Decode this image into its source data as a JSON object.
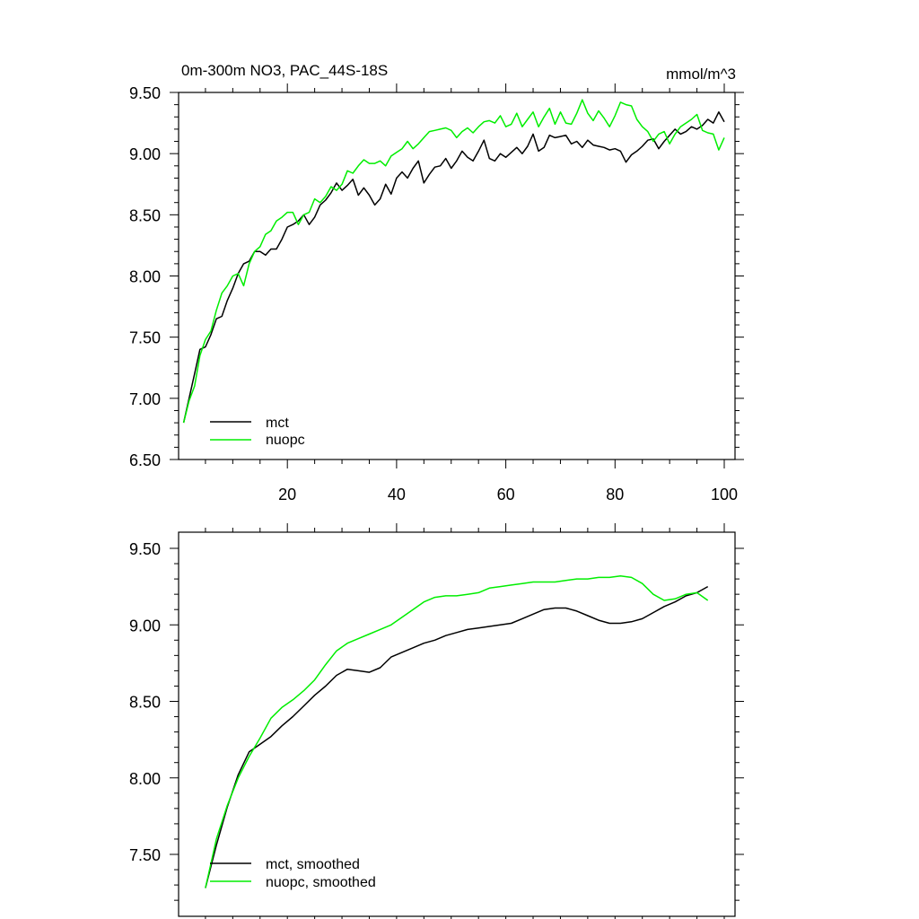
{
  "chart_data": [
    {
      "type": "line",
      "title_left": "0m-300m NO3, PAC_44S-18S",
      "title_right": "mmol/m^3",
      "xlabel": "",
      "ylabel": "",
      "xlim": [
        0,
        101
      ],
      "ylim": [
        6.5,
        9.5
      ],
      "x_ticks": [
        "20",
        "40",
        "60",
        "80",
        "100"
      ],
      "y_ticks": [
        "6.50",
        "7.00",
        "7.50",
        "8.00",
        "8.50",
        "9.00",
        "9.50"
      ],
      "legend_position": "bottom-left",
      "series": [
        {
          "name": "mct",
          "color": "#000000",
          "x": [
            1,
            2,
            3,
            4,
            5,
            6,
            7,
            8,
            9,
            10,
            11,
            12,
            13,
            14,
            15,
            16,
            17,
            18,
            19,
            20,
            21,
            22,
            23,
            24,
            25,
            26,
            27,
            28,
            29,
            30,
            31,
            32,
            33,
            34,
            35,
            36,
            37,
            38,
            39,
            40,
            41,
            42,
            43,
            44,
            45,
            46,
            47,
            48,
            49,
            50,
            51,
            52,
            53,
            54,
            55,
            56,
            57,
            58,
            59,
            60,
            61,
            62,
            63,
            64,
            65,
            66,
            67,
            68,
            69,
            70,
            71,
            72,
            73,
            74,
            75,
            76,
            77,
            78,
            79,
            80,
            81,
            82,
            83,
            84,
            85,
            86,
            87,
            88,
            89,
            90,
            91,
            92,
            93,
            94,
            95,
            96,
            97,
            98,
            99,
            100
          ],
          "y": [
            6.8,
            7.0,
            7.2,
            7.4,
            7.42,
            7.52,
            7.65,
            7.67,
            7.8,
            7.9,
            8.02,
            8.1,
            8.12,
            8.2,
            8.2,
            8.17,
            8.22,
            8.22,
            8.3,
            8.4,
            8.42,
            8.45,
            8.5,
            8.42,
            8.48,
            8.58,
            8.62,
            8.68,
            8.76,
            8.7,
            8.74,
            8.79,
            8.66,
            8.72,
            8.66,
            8.58,
            8.63,
            8.75,
            8.67,
            8.8,
            8.85,
            8.8,
            8.88,
            8.94,
            8.76,
            8.83,
            8.89,
            8.9,
            8.96,
            8.88,
            8.94,
            9.02,
            8.97,
            8.94,
            9.02,
            9.11,
            8.96,
            8.94,
            9.0,
            8.97,
            9.01,
            9.05,
            9.0,
            9.06,
            9.16,
            9.02,
            9.05,
            9.15,
            9.13,
            9.14,
            9.15,
            9.08,
            9.1,
            9.05,
            9.11,
            9.07,
            9.06,
            9.05,
            9.03,
            9.04,
            9.02,
            8.93,
            8.99,
            9.02,
            9.06,
            9.11,
            9.12,
            9.04,
            9.1,
            9.15,
            9.2,
            9.16,
            9.18,
            9.22,
            9.2,
            9.23,
            9.28,
            9.25,
            9.34,
            9.26
          ]
        },
        {
          "name": "nuopc",
          "color": "#00ee00",
          "x": [
            1,
            2,
            3,
            4,
            5,
            6,
            7,
            8,
            9,
            10,
            11,
            12,
            13,
            14,
            15,
            16,
            17,
            18,
            19,
            20,
            21,
            22,
            23,
            24,
            25,
            26,
            27,
            28,
            29,
            30,
            31,
            32,
            33,
            34,
            35,
            36,
            37,
            38,
            39,
            40,
            41,
            42,
            43,
            44,
            45,
            46,
            47,
            48,
            49,
            50,
            51,
            52,
            53,
            54,
            55,
            56,
            57,
            58,
            59,
            60,
            61,
            62,
            63,
            64,
            65,
            66,
            67,
            68,
            69,
            70,
            71,
            72,
            73,
            74,
            75,
            76,
            77,
            78,
            79,
            80,
            81,
            82,
            83,
            84,
            85,
            86,
            87,
            88,
            89,
            90,
            91,
            92,
            93,
            94,
            95,
            96,
            97,
            98,
            99,
            100
          ],
          "y": [
            6.8,
            6.98,
            7.1,
            7.35,
            7.48,
            7.55,
            7.72,
            7.86,
            7.92,
            8.0,
            8.02,
            7.92,
            8.1,
            8.2,
            8.24,
            8.34,
            8.37,
            8.45,
            8.48,
            8.52,
            8.52,
            8.42,
            8.5,
            8.52,
            8.63,
            8.6,
            8.65,
            8.73,
            8.7,
            8.75,
            8.86,
            8.84,
            8.9,
            8.95,
            8.92,
            8.92,
            8.94,
            8.9,
            8.98,
            9.01,
            9.04,
            9.1,
            9.04,
            9.08,
            9.13,
            9.18,
            9.19,
            9.2,
            9.21,
            9.19,
            9.13,
            9.18,
            9.21,
            9.17,
            9.22,
            9.26,
            9.27,
            9.25,
            9.31,
            9.22,
            9.24,
            9.33,
            9.22,
            9.28,
            9.34,
            9.22,
            9.3,
            9.37,
            9.24,
            9.34,
            9.25,
            9.24,
            9.33,
            9.44,
            9.33,
            9.27,
            9.35,
            9.29,
            9.22,
            9.31,
            9.42,
            9.4,
            9.39,
            9.28,
            9.22,
            9.18,
            9.1,
            9.16,
            9.18,
            9.08,
            9.16,
            9.22,
            9.25,
            9.28,
            9.32,
            9.19,
            9.17,
            9.16,
            9.03,
            9.13
          ]
        }
      ]
    },
    {
      "type": "line",
      "title_left": "",
      "title_right": "",
      "xlabel": "",
      "ylabel": "",
      "xlim": [
        0,
        101
      ],
      "ylim": [
        7.2,
        9.55
      ],
      "x_ticks": [],
      "y_ticks": [
        "7.50",
        "8.00",
        "8.50",
        "9.00",
        "9.50"
      ],
      "legend_position": "bottom-left",
      "series": [
        {
          "name": "mct, smoothed",
          "color": "#000000",
          "x": [
            5,
            7,
            9,
            11,
            13,
            15,
            17,
            19,
            21,
            23,
            25,
            27,
            29,
            31,
            33,
            35,
            37,
            39,
            41,
            43,
            45,
            47,
            49,
            51,
            53,
            55,
            57,
            59,
            61,
            63,
            65,
            67,
            69,
            71,
            73,
            75,
            77,
            79,
            81,
            83,
            85,
            87,
            89,
            91,
            93,
            95,
            97
          ],
          "y": [
            7.28,
            7.56,
            7.81,
            8.02,
            8.17,
            8.22,
            8.27,
            8.34,
            8.4,
            8.47,
            8.54,
            8.6,
            8.67,
            8.71,
            8.7,
            8.69,
            8.72,
            8.79,
            8.82,
            8.85,
            8.88,
            8.9,
            8.93,
            8.95,
            8.97,
            8.98,
            8.99,
            9.0,
            9.01,
            9.04,
            9.07,
            9.1,
            9.11,
            9.11,
            9.09,
            9.06,
            9.03,
            9.01,
            9.01,
            9.02,
            9.04,
            9.08,
            9.12,
            9.15,
            9.19,
            9.21,
            9.25
          ]
        },
        {
          "name": "nuopc, smoothed",
          "color": "#00ee00",
          "x": [
            5,
            7,
            9,
            11,
            13,
            15,
            17,
            19,
            21,
            23,
            25,
            27,
            29,
            31,
            33,
            35,
            37,
            39,
            41,
            43,
            45,
            47,
            49,
            51,
            53,
            55,
            57,
            59,
            61,
            63,
            65,
            67,
            69,
            71,
            73,
            75,
            77,
            79,
            81,
            83,
            85,
            87,
            89,
            91,
            93,
            95,
            97
          ],
          "y": [
            7.28,
            7.6,
            7.82,
            8.0,
            8.14,
            8.26,
            8.39,
            8.46,
            8.51,
            8.57,
            8.64,
            8.74,
            8.83,
            8.88,
            8.91,
            8.94,
            8.97,
            9.0,
            9.05,
            9.1,
            9.15,
            9.18,
            9.19,
            9.19,
            9.2,
            9.21,
            9.24,
            9.25,
            9.26,
            9.27,
            9.28,
            9.28,
            9.28,
            9.29,
            9.3,
            9.3,
            9.31,
            9.31,
            9.32,
            9.31,
            9.27,
            9.2,
            9.16,
            9.17,
            9.2,
            9.21,
            9.16
          ]
        }
      ]
    }
  ]
}
